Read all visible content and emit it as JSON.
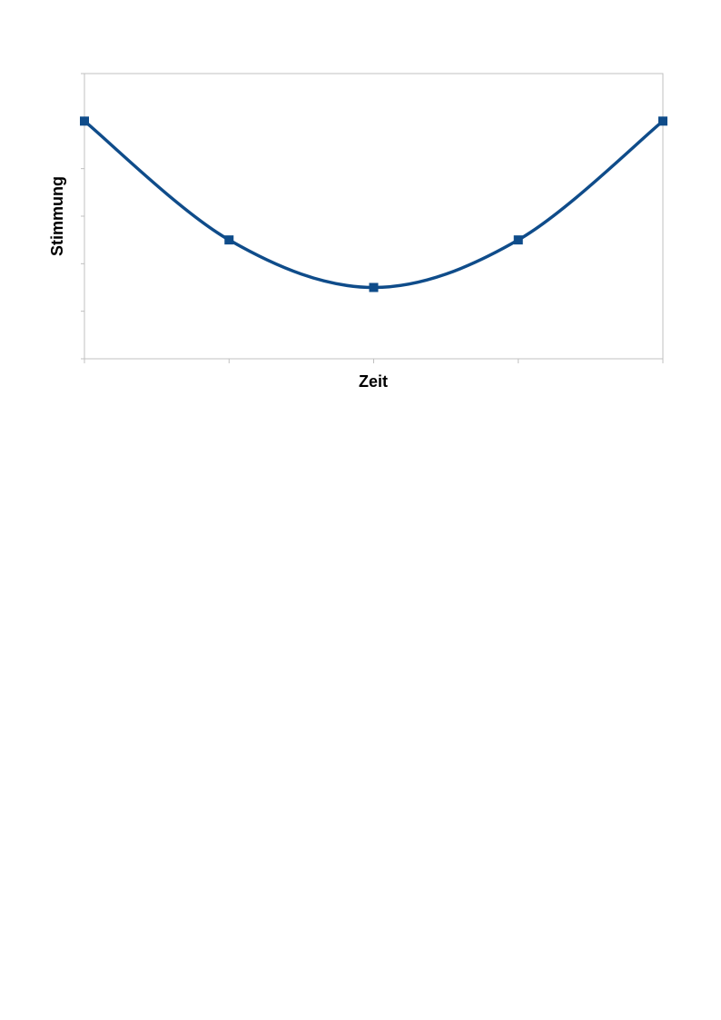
{
  "chart_data": {
    "type": "line",
    "title": "",
    "xlabel": "Zeit",
    "ylabel": "Stimmung",
    "x": [
      1,
      2,
      3,
      4,
      5
    ],
    "series": [
      {
        "values": [
          5,
          2.5,
          1.5,
          2.5,
          5
        ],
        "color": "#0f4c8a",
        "marker": "square",
        "smooth": true
      }
    ],
    "xlim": [
      1,
      5
    ],
    "ylim": [
      0,
      6
    ],
    "yticks": [
      0,
      1,
      2,
      3,
      4,
      5,
      6
    ],
    "tick_labels_shown": false,
    "grid": false,
    "legend": "none",
    "frame_color": "#c0c0c0"
  }
}
